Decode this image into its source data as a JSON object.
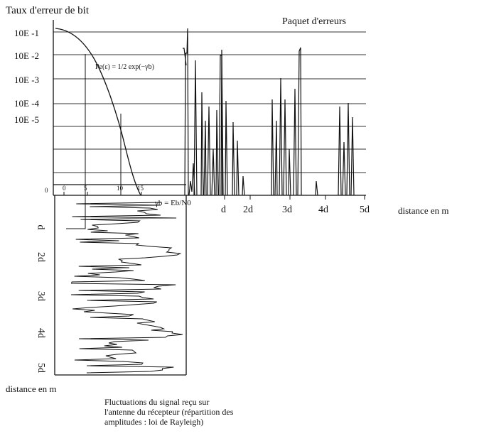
{
  "title": "Taux d'erreur de bit",
  "burst_label": "Paquet d'erreurs",
  "y_ticks": [
    "10E -1",
    "10E -2",
    "10E -3",
    "10E -4",
    "10E -5"
  ],
  "snr_ticks": [
    "0",
    "5",
    "10",
    "15"
  ],
  "snr_symbol": "γb = Eb/N0",
  "formula": "Pe(ε) = 1/2 exp(−γb)",
  "distance_ticks": [
    "d",
    "2d",
    "3d",
    "4d",
    "5d"
  ],
  "x_axis_label": "distance en  m",
  "y_distance_label": "distance en  m",
  "caption_lines": [
    "Fluctuations du signal reçu sur",
    "l'antenne du récepteur (répartition des",
    "amplitudes : loi de Rayleigh)"
  ]
}
